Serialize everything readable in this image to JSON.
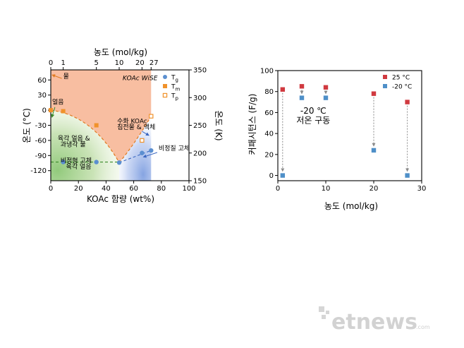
{
  "chart_data": [
    {
      "type": "scatter",
      "title": "",
      "xlabel": "KOAc 함량 (wt%)",
      "ylabel": "온도 (°C)",
      "x2label": "농도 (mol/kg)",
      "y2label": "온도 (K)",
      "xlim": [
        0,
        100
      ],
      "ylim": [
        -140,
        80
      ],
      "y2lim": [
        150,
        350
      ],
      "x_ticks": [
        0,
        20,
        40,
        60,
        80,
        100
      ],
      "y_ticks": [
        -120,
        -90,
        -60,
        -30,
        0,
        30,
        60
      ],
      "y2_ticks": [
        150,
        200,
        250,
        300,
        350
      ],
      "x2_ticks": [
        {
          "label": "0",
          "wt": 0
        },
        {
          "label": "1",
          "wt": 9
        },
        {
          "label": "5",
          "wt": 33
        },
        {
          "label": "10",
          "wt": 49.5
        },
        {
          "label": "20",
          "wt": 66
        },
        {
          "label": "27",
          "wt": 72.6
        }
      ],
      "series": [
        {
          "name": "Tg",
          "name_main": "T",
          "name_sub": "g",
          "marker": "circle",
          "color": "#5b8fd0",
          "x": [
            9,
            33,
            49.5,
            66,
            72.6
          ],
          "y": [
            -103,
            -103,
            -104,
            -85,
            -80
          ]
        },
        {
          "name": "Tm",
          "name_main": "T",
          "name_sub": "m",
          "marker": "square",
          "color": "#f0922b",
          "x": [
            0,
            9,
            33
          ],
          "y": [
            0,
            -2,
            -30
          ]
        },
        {
          "name": "Tp",
          "name_main": "T",
          "name_sub": "p",
          "marker": "open-square",
          "color": "#f0922b",
          "x": [
            66,
            72.6
          ],
          "y": [
            -60,
            -12
          ]
        }
      ],
      "legend_position": "top-right",
      "annotations": [
        {
          "text": "물",
          "x": 9,
          "y": 63
        },
        {
          "text": "KOAc WiSE",
          "x": 52,
          "y": 60,
          "style": "italic"
        },
        {
          "text": "얼음",
          "x": 1,
          "y": 12
        },
        {
          "text": "육각 얼음 &",
          "x": 5,
          "y": -60
        },
        {
          "text": "과냉각 물",
          "x": 7,
          "y": -72
        },
        {
          "text": "수화 KOAc",
          "x": 48,
          "y": -26
        },
        {
          "text": "침전물 & 액체",
          "x": 48,
          "y": -38
        },
        {
          "text": "비정질 고체",
          "x": 78,
          "y": -80
        },
        {
          "text": "비정형 고체",
          "x": 7,
          "y": -104
        },
        {
          "text": "육각 얼음",
          "x": 11,
          "y": -116
        }
      ],
      "grid": false
    },
    {
      "type": "scatter",
      "title": "",
      "xlabel": "농도 (mol/kg)",
      "ylabel": "커패시턴스 (F/g)",
      "xlim": [
        0,
        30
      ],
      "ylim": [
        -5,
        100
      ],
      "x_ticks": [
        0,
        10,
        20,
        30
      ],
      "y_ticks": [
        0,
        20,
        40,
        60,
        80,
        100
      ],
      "series": [
        {
          "name": "25 °C",
          "marker": "square",
          "color": "#d0393f",
          "x": [
            1,
            5,
            10,
            20,
            27
          ],
          "y": [
            82,
            85,
            84,
            78,
            70
          ]
        },
        {
          "name": "-20 °C",
          "marker": "square",
          "color": "#4e8fc8",
          "x": [
            1,
            5,
            10,
            20,
            27
          ],
          "y": [
            0,
            74,
            74,
            24,
            0
          ]
        }
      ],
      "legend_position": "top-right",
      "annotations": [
        {
          "text": "-20 ℃",
          "x": 7.4,
          "y": 59
        },
        {
          "text": "저온 구동",
          "x": 7.4,
          "y": 50
        }
      ],
      "grid": false
    }
  ],
  "watermark": {
    "logo": "etnews",
    "sub": ".com"
  }
}
